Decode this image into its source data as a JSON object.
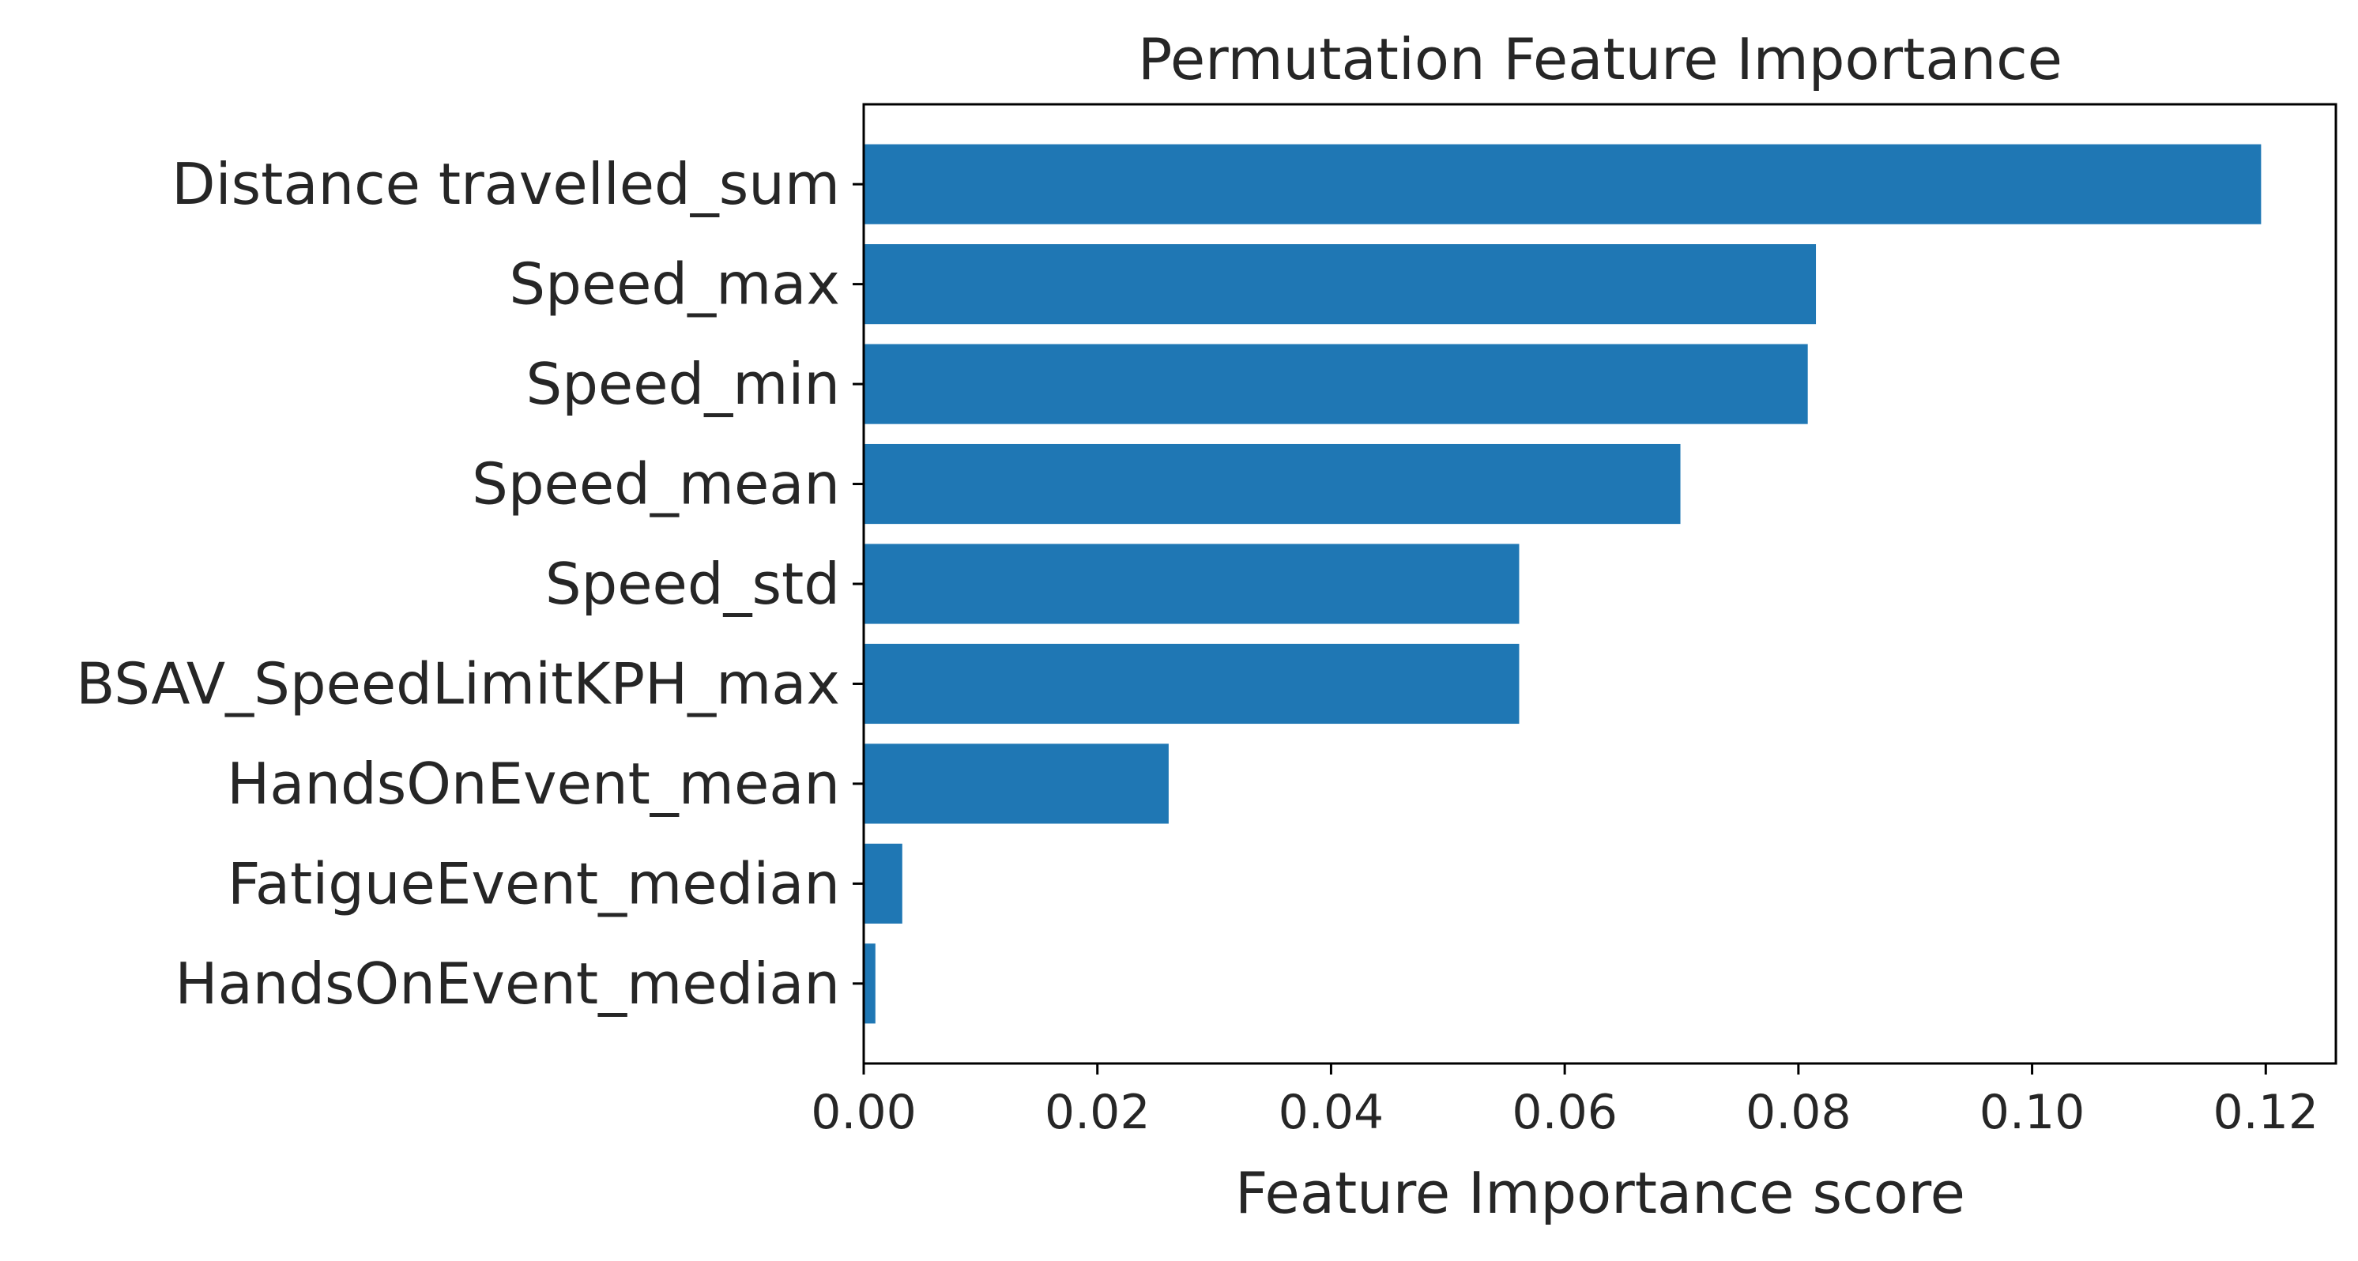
{
  "chart_data": {
    "type": "bar",
    "orientation": "horizontal",
    "title": "Permutation Feature Importance",
    "xlabel": "Feature Importance score",
    "ylabel": "",
    "xlim": [
      0,
      0.126
    ],
    "x_ticks": [
      "0.00",
      "0.02",
      "0.04",
      "0.06",
      "0.08",
      "0.10",
      "0.12"
    ],
    "grid": false,
    "bar_color": "#1f77b4",
    "categories": [
      "Distance travelled_sum",
      "Speed_max",
      "Speed_min",
      "Speed_mean",
      "Speed_std",
      "BSAV_SpeedLimitKPH_max",
      "HandsOnEvent_mean",
      "FatigueEvent_median",
      "HandsOnEvent_median"
    ],
    "values": [
      0.1196,
      0.0815,
      0.0808,
      0.0699,
      0.0561,
      0.0561,
      0.0261,
      0.0033,
      0.001
    ]
  }
}
